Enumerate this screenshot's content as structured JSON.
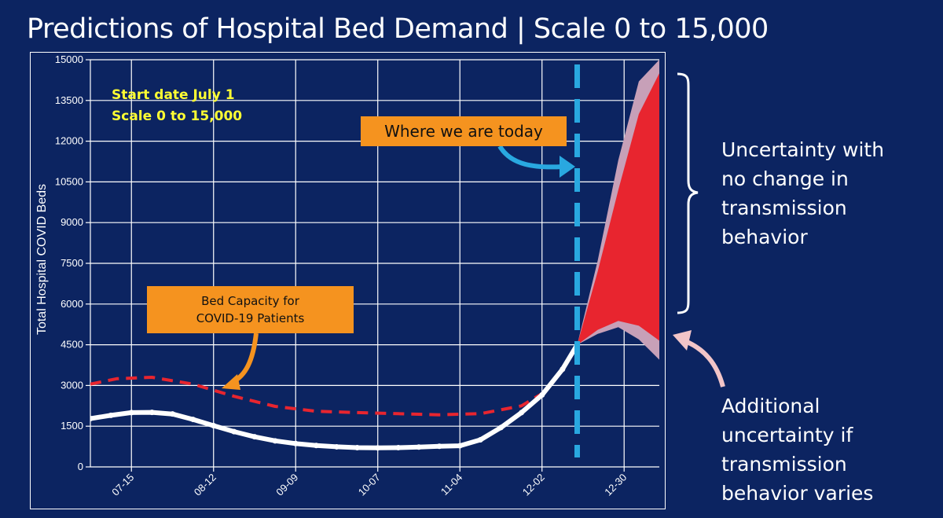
{
  "title": "Predictions of Hospital Bed Demand | Scale 0 to 15,000",
  "annotations": {
    "start_line1": "Start date July 1",
    "start_line2": "Scale 0 to 15,000",
    "today": "Where we are today",
    "capacity_line1": "Bed Capacity for",
    "capacity_line2": "COVID-19 Patients",
    "unc1": [
      "Uncertainty with",
      "no change in",
      "transmission",
      "behavior"
    ],
    "unc2": [
      "Additional",
      "uncertainty if",
      "transmission",
      "behavior varies"
    ]
  },
  "colors": {
    "background": "#0c2461",
    "capacity_line": "#e8252f",
    "observed": "#ffffff",
    "today_line": "#29a8e0",
    "band_inner": "#e8252f",
    "band_outer": "#c7a0b8",
    "label_box": "#f5931f",
    "note_text": "#ffff33"
  },
  "chart_data": {
    "type": "line",
    "ylabel": "Total Hospital COVID Beds",
    "ylim": [
      0,
      15000
    ],
    "yticks": [
      0,
      1500,
      3000,
      4500,
      6000,
      7500,
      9000,
      10500,
      12000,
      13500,
      15000
    ],
    "xlim": [
      "2020-07-01",
      "2021-01-11"
    ],
    "xticks": [
      "07-15",
      "08-12",
      "09-09",
      "10-07",
      "11-04",
      "12-02",
      "12-30"
    ],
    "today": "2020-12-14",
    "series": [
      {
        "role": "observed",
        "x": [
          "2020-07-01",
          "2020-07-08",
          "2020-07-15",
          "2020-07-22",
          "2020-07-29",
          "2020-08-05",
          "2020-08-12",
          "2020-08-19",
          "2020-08-26",
          "2020-09-02",
          "2020-09-09",
          "2020-09-16",
          "2020-09-23",
          "2020-09-30",
          "2020-10-07",
          "2020-10-14",
          "2020-10-21",
          "2020-10-28",
          "2020-11-04",
          "2020-11-11",
          "2020-11-18",
          "2020-11-25",
          "2020-12-02",
          "2020-12-09",
          "2020-12-14"
        ],
        "y": [
          1780,
          1900,
          2000,
          2010,
          1950,
          1750,
          1520,
          1300,
          1110,
          960,
          860,
          790,
          740,
          710,
          700,
          710,
          730,
          760,
          780,
          1000,
          1450,
          2000,
          2650,
          3600,
          4500
        ]
      },
      {
        "role": "capacity",
        "x": [
          "2020-07-01",
          "2020-07-10",
          "2020-07-22",
          "2020-08-05",
          "2020-08-19",
          "2020-09-02",
          "2020-09-16",
          "2020-09-30",
          "2020-10-14",
          "2020-10-28",
          "2020-11-11",
          "2020-11-25",
          "2020-12-02",
          "2020-12-09",
          "2020-12-14"
        ],
        "y": [
          3050,
          3250,
          3300,
          3050,
          2600,
          2230,
          2050,
          2000,
          1960,
          1920,
          1960,
          2250,
          2700,
          3550,
          4500
        ]
      },
      {
        "role": "projection_no_change",
        "x": [
          "2020-12-14",
          "2020-12-21",
          "2020-12-28",
          "2021-01-04",
          "2021-01-11"
        ],
        "low": [
          4500,
          5050,
          5380,
          5200,
          4650
        ],
        "high": [
          4500,
          7200,
          10200,
          13000,
          14500
        ]
      },
      {
        "role": "projection_varies",
        "x": [
          "2020-12-14",
          "2020-12-21",
          "2020-12-28",
          "2021-01-04",
          "2021-01-11"
        ],
        "low": [
          4500,
          4900,
          5150,
          4700,
          3950
        ],
        "high": [
          4500,
          7600,
          11300,
          14200,
          15000
        ]
      }
    ]
  }
}
